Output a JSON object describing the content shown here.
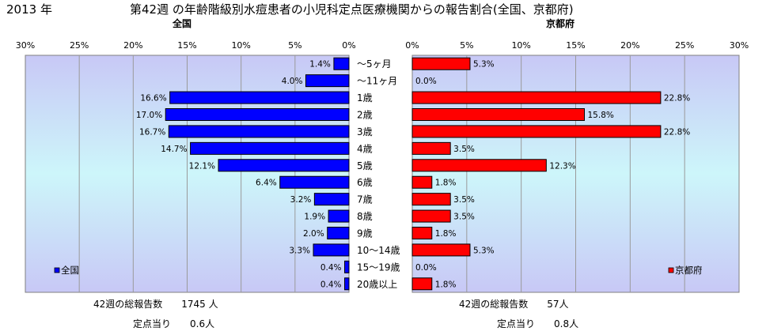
{
  "header": {
    "year": "2013 年",
    "title": "第42週 の年齢階級別水痘患者の小児科定点医療機関からの報告割合(全国、京都府)"
  },
  "panels": {
    "left_title": "全国",
    "right_title": "京都府"
  },
  "footer": {
    "left_total": "42週の総報告数　　1745 人",
    "left_per": "定点当り　　0.6人",
    "right_total": "42週の総報告数　　57人",
    "right_per": "定点当り　　0.8人"
  },
  "chart_data": {
    "type": "bar",
    "orientation": "horizontal-butterfly",
    "categories": [
      "〜5ヶ月",
      "〜11ヶ月",
      "1歳",
      "2歳",
      "3歳",
      "4歳",
      "5歳",
      "6歳",
      "7歳",
      "8歳",
      "9歳",
      "10〜14歳",
      "15〜19歳",
      "20歳以上"
    ],
    "series": [
      {
        "name": "全国",
        "color": "#0000ff",
        "values": [
          1.4,
          4.0,
          16.6,
          17.0,
          16.7,
          14.7,
          12.1,
          6.4,
          3.2,
          1.9,
          2.0,
          3.3,
          0.4,
          0.4
        ],
        "labels": [
          "1.4%",
          "4.0%",
          "16.6%",
          "17.0%",
          "16.7%",
          "14.7%",
          "12.1%",
          "6.4%",
          "3.2%",
          "1.9%",
          "2.0%",
          "3.3%",
          "0.4%",
          "0.4%"
        ]
      },
      {
        "name": "京都府",
        "color": "#ff0000",
        "values": [
          5.3,
          0.0,
          22.8,
          15.8,
          22.8,
          3.5,
          12.3,
          1.8,
          3.5,
          3.5,
          1.8,
          5.3,
          0.0,
          1.8
        ],
        "labels": [
          "5.3%",
          "0.0%",
          "22.8%",
          "15.8%",
          "22.8%",
          "3.5%",
          "12.3%",
          "1.8%",
          "3.5%",
          "3.5%",
          "1.8%",
          "5.3%",
          "0.0%",
          "1.8%"
        ]
      }
    ],
    "xlim": [
      0,
      30
    ],
    "ticks": [
      "0%",
      "5%",
      "10%",
      "15%",
      "20%",
      "25%",
      "30%"
    ],
    "grid": true,
    "legend_placement": "bottom-inside"
  }
}
